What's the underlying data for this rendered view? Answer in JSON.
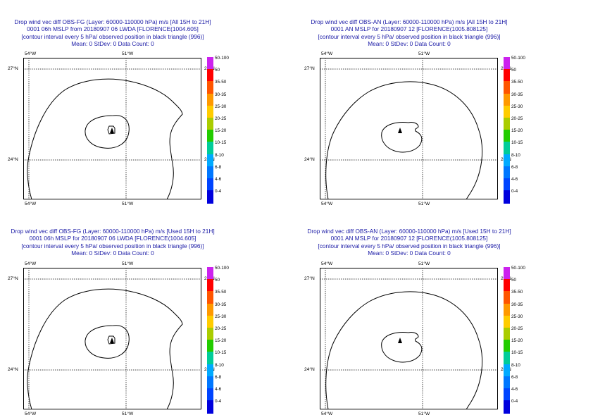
{
  "panels": [
    {
      "id": "p1",
      "title_lines": [
        "Drop wind vec diff OBS-FG (Layer: 60000-110000 hPa) m/s [All 15H to 21H]",
        "0001 06h MSLP from 20180907 06 LWDA [FLORENCE(1004.605]",
        "[contour interval every 5 hPa/ observed position in black triangle (996)]",
        "Mean: 0 StDev: 0 Data Count: 0"
      ],
      "lon_labels": [
        "54°W",
        "51°W"
      ],
      "lat_labels": [
        "27°N",
        "24°N"
      ],
      "inner_contour": true
    },
    {
      "id": "p2",
      "title_lines": [
        "Drop wind vec diff OBS-AN (Layer: 60000-110000 hPa) m/s [All 15H to 21H]",
        "0001 AN MSLP for 20180907 12 [FLORENCE(1005.808125]",
        "[contour interval every 5 hPa/ observed position in black triangle (996)]",
        "Mean: 0 StDev: 0 Data Count: 0"
      ],
      "lon_labels": [
        "54°W",
        "51°W"
      ],
      "lat_labels": [
        "27°N",
        "24°N"
      ],
      "inner_contour": false
    },
    {
      "id": "p3",
      "title_lines": [
        "Drop wind vec diff OBS-FG (Layer: 60000-110000 hPa) m/s [Used 15H to 21H]",
        "0001 06h MSLP for 20180907 06 LWDA [FLORENCE(1004.605]",
        "[contour interval every 5 hPa/ observed position in black triangle (996)]",
        "Mean: 0 StDev: 0 Data Count: 0"
      ],
      "lon_labels": [
        "54°W",
        "51°W"
      ],
      "lat_labels": [
        "27°N",
        "24°N"
      ],
      "inner_contour": true
    },
    {
      "id": "p4",
      "title_lines": [
        "Drop wind vec diff OBS-AN (Layer: 60000-110000 hPa) m/s [Used 15H to 21H]",
        "0001 AN MSLP for 20180907 12 [FLORENCE(1005.808125]",
        "[contour interval every 5 hPa/ observed position in black triangle (996)]",
        "Mean: 0 StDev: 0 Data Count: 0"
      ],
      "lon_labels": [
        "54°W",
        "51°W"
      ],
      "lat_labels": [
        "27°N",
        "24°N"
      ],
      "inner_contour": false
    }
  ],
  "legend": {
    "labels": [
      "50-100",
      "50",
      "35-50",
      "30-35",
      "25-30",
      "20-25",
      "15-20",
      "10-15",
      "8-10",
      "6-8",
      "4-6",
      "0-4"
    ],
    "colors": [
      "#cc22ee",
      "#ff0000",
      "#ff5500",
      "#ff9900",
      "#ffcc00",
      "#aacc00",
      "#22cc00",
      "#00cc99",
      "#00aaff",
      "#0077ff",
      "#0044ff",
      "#0000dd"
    ]
  }
}
